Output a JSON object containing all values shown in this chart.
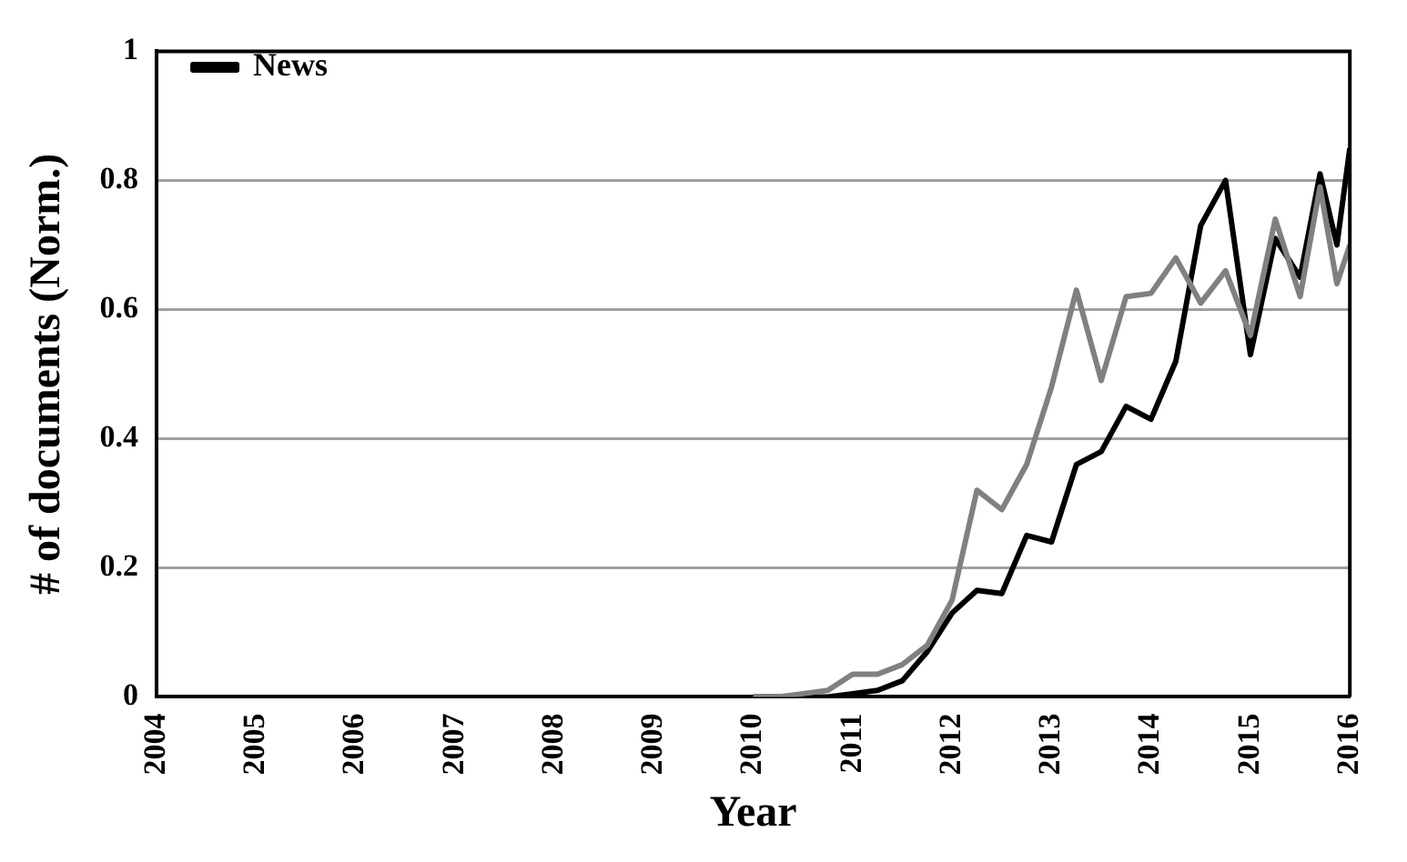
{
  "chart_data": {
    "type": "line",
    "xlabel": "Year",
    "ylabel": "# of documents (Norm.)",
    "x": [
      2010,
      2010.25,
      2010.5,
      2010.75,
      2011,
      2011.25,
      2011.5,
      2011.75,
      2012,
      2012.25,
      2012.5,
      2012.75,
      2013,
      2013.25,
      2013.5,
      2013.75,
      2014,
      2014.25,
      2014.5,
      2014.75,
      2015,
      2015.25,
      2015.5,
      2015.7,
      2015.87,
      2016
    ],
    "series": [
      {
        "color": "#808080",
        "values": [
          0,
          0,
          0.005,
          0.01,
          0.035,
          0.035,
          0.05,
          0.08,
          0.15,
          0.32,
          0.29,
          0.36,
          0.48,
          0.63,
          0.49,
          0.62,
          0.625,
          0.68,
          0.61,
          0.66,
          0.56,
          0.74,
          0.62,
          0.79,
          0.64,
          0.7
        ]
      },
      {
        "name": "News",
        "color": "#000000",
        "values": [
          0,
          0,
          0,
          0,
          0.005,
          0.01,
          0.025,
          0.07,
          0.13,
          0.165,
          0.16,
          0.25,
          0.24,
          0.36,
          0.38,
          0.45,
          0.43,
          0.52,
          0.73,
          0.8,
          0.53,
          0.71,
          0.65,
          0.81,
          0.7,
          0.85
        ]
      }
    ],
    "xlim": [
      2004,
      2016
    ],
    "xticks": [
      2004,
      2005,
      2006,
      2007,
      2008,
      2009,
      2010,
      2011,
      2012,
      2013,
      2014,
      2015,
      2016
    ],
    "ylim": [
      0,
      1
    ],
    "yticks": [
      0,
      0.2,
      0.4,
      0.6,
      0.8,
      1
    ],
    "grid": "y",
    "legend": "top left",
    "marker": "none",
    "line_style": "solid"
  }
}
